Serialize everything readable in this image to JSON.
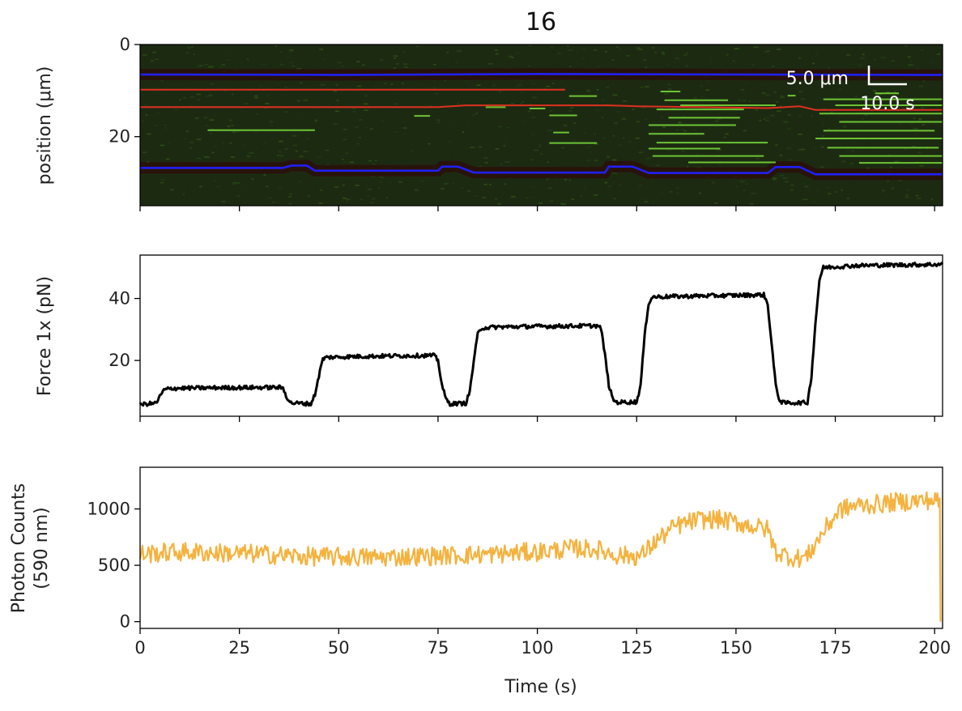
{
  "title": "16",
  "colors": {
    "kymo_bg": "#1d2a12",
    "tether": "#2020ff",
    "red_track": "#e03020",
    "green_track": "#7adf3a",
    "force_line": "#000000",
    "photon_line": "#f4b23e"
  },
  "scalebar": {
    "length_label": "5.0 μm",
    "time_label": "10.0 s"
  },
  "chart_data": [
    {
      "type": "heatmap",
      "name": "kymograph",
      "ylabel": "position (μm)",
      "xlim": [
        0,
        202
      ],
      "ylim": [
        35,
        0
      ],
      "yticks": [
        0,
        20
      ],
      "xticks": [
        0,
        25,
        50,
        75,
        100,
        125,
        150,
        175,
        200
      ],
      "tether_lines": [
        {
          "points": [
            [
              0,
              6.5
            ],
            [
              50,
              6.6
            ],
            [
              100,
              6.4
            ],
            [
              150,
              6.5
            ],
            [
              202,
              6.6
            ]
          ]
        },
        {
          "points": [
            [
              0,
              26.8
            ],
            [
              36,
              26.8
            ],
            [
              38,
              26.3
            ],
            [
              42,
              26.3
            ],
            [
              44,
              27.4
            ],
            [
              75,
              27.4
            ],
            [
              76,
              26.5
            ],
            [
              80,
              26.5
            ],
            [
              84,
              27.8
            ],
            [
              117,
              27.8
            ],
            [
              118,
              26.5
            ],
            [
              124,
              26.5
            ],
            [
              128,
              27.9
            ],
            [
              158,
              27.9
            ],
            [
              160,
              26.6
            ],
            [
              166,
              26.6
            ],
            [
              170,
              28.2
            ],
            [
              202,
              28.2
            ]
          ]
        }
      ],
      "red_lines": [
        {
          "points": [
            [
              0,
              9.8
            ],
            [
              107,
              9.8
            ]
          ]
        },
        {
          "points": [
            [
              0,
              13.6
            ],
            [
              75,
              13.6
            ],
            [
              82,
              13.2
            ],
            [
              118,
              13.2
            ],
            [
              125,
              13.4
            ],
            [
              158,
              13.8
            ],
            [
              166,
              13.4
            ],
            [
              170,
              14.2
            ],
            [
              202,
              14.2
            ]
          ]
        }
      ],
      "green_segments": [
        [
          [
            17,
            18.6
          ],
          [
            44,
            18.6
          ]
        ],
        [
          [
            69,
            15.5
          ],
          [
            73,
            15.5
          ]
        ],
        [
          [
            87,
            13.6
          ],
          [
            92,
            13.6
          ]
        ],
        [
          [
            98,
            13.9
          ],
          [
            102,
            13.9
          ]
        ],
        [
          [
            103,
            15.4
          ],
          [
            110,
            15.4
          ]
        ],
        [
          [
            108,
            11.2
          ],
          [
            115,
            11.2
          ]
        ],
        [
          [
            103,
            21.4
          ],
          [
            115,
            21.4
          ]
        ],
        [
          [
            104,
            19.1
          ],
          [
            108,
            19.1
          ]
        ],
        [
          [
            131,
            10.2
          ],
          [
            136,
            10.2
          ]
        ],
        [
          [
            132,
            12.1
          ],
          [
            148,
            12.1
          ]
        ],
        [
          [
            136,
            13.2
          ],
          [
            160,
            13.2
          ]
        ],
        [
          [
            130,
            14.1
          ],
          [
            152,
            14.1
          ]
        ],
        [
          [
            133,
            15.9
          ],
          [
            151,
            15.9
          ]
        ],
        [
          [
            128,
            17.5
          ],
          [
            150,
            17.5
          ]
        ],
        [
          [
            128,
            19.4
          ],
          [
            142,
            19.4
          ]
        ],
        [
          [
            130,
            21.3
          ],
          [
            158,
            21.3
          ]
        ],
        [
          [
            128,
            22.6
          ],
          [
            146,
            22.6
          ]
        ],
        [
          [
            129,
            24.2
          ],
          [
            157,
            24.2
          ]
        ],
        [
          [
            138,
            25.6
          ],
          [
            160,
            25.6
          ]
        ],
        [
          [
            163,
            11.1
          ],
          [
            165,
            11.1
          ]
        ],
        [
          [
            172,
            11.9
          ],
          [
            202,
            11.9
          ]
        ],
        [
          [
            175,
            13.2
          ],
          [
            202,
            13.2
          ]
        ],
        [
          [
            171,
            15.0
          ],
          [
            202,
            15.0
          ]
        ],
        [
          [
            176,
            16.8
          ],
          [
            202,
            16.8
          ]
        ],
        [
          [
            172,
            18.7
          ],
          [
            200,
            18.7
          ]
        ],
        [
          [
            170,
            20.4
          ],
          [
            202,
            20.4
          ]
        ],
        [
          [
            173,
            22.4
          ],
          [
            201,
            22.4
          ]
        ],
        [
          [
            176,
            24.2
          ],
          [
            202,
            24.2
          ]
        ],
        [
          [
            181,
            25.7
          ],
          [
            202,
            25.7
          ]
        ],
        [
          [
            185,
            10.6
          ],
          [
            191,
            10.6
          ]
        ]
      ]
    },
    {
      "type": "line",
      "name": "force",
      "ylabel": "Force 1x (pN)",
      "xlim": [
        0,
        202
      ],
      "ylim": [
        2,
        54
      ],
      "yticks": [
        20,
        40
      ],
      "xticks": [
        0,
        25,
        50,
        75,
        100,
        125,
        150,
        175,
        200
      ],
      "series": [
        {
          "points": [
            [
              0,
              5.8
            ],
            [
              4,
              6.2
            ],
            [
              6,
              10.5
            ],
            [
              8,
              11.0
            ],
            [
              20,
              11.2
            ],
            [
              35,
              11.3
            ],
            [
              36,
              11.0
            ],
            [
              37,
              8.0
            ],
            [
              38,
              6.3
            ],
            [
              43,
              6.0
            ],
            [
              44,
              9.0
            ],
            [
              45,
              15.0
            ],
            [
              46,
              20.5
            ],
            [
              47,
              21.0
            ],
            [
              55,
              21.3
            ],
            [
              65,
              21.5
            ],
            [
              74,
              21.6
            ],
            [
              75,
              20.0
            ],
            [
              76,
              12.0
            ],
            [
              77,
              7.5
            ],
            [
              78,
              6.0
            ],
            [
              82,
              6.2
            ],
            [
              83,
              10.0
            ],
            [
              84,
              20.0
            ],
            [
              85,
              28.5
            ],
            [
              86,
              30.5
            ],
            [
              90,
              30.8
            ],
            [
              100,
              31.0
            ],
            [
              115,
              31.2
            ],
            [
              116,
              30.5
            ],
            [
              117,
              22.0
            ],
            [
              118,
              12.0
            ],
            [
              119,
              7.5
            ],
            [
              120,
              6.5
            ],
            [
              125,
              6.6
            ],
            [
              126,
              12.0
            ],
            [
              127,
              28.0
            ],
            [
              128,
              38.5
            ],
            [
              129,
              40.5
            ],
            [
              140,
              40.8
            ],
            [
              150,
              41.0
            ],
            [
              157,
              41.2
            ],
            [
              158,
              38.0
            ],
            [
              159,
              25.0
            ],
            [
              160,
              12.0
            ],
            [
              161,
              7.0
            ],
            [
              162,
              6.3
            ],
            [
              168,
              6.4
            ],
            [
              169,
              15.0
            ],
            [
              170,
              32.0
            ],
            [
              171,
              46.0
            ],
            [
              172,
              50.0
            ],
            [
              180,
              50.6
            ],
            [
              190,
              50.8
            ],
            [
              202,
              51.0
            ]
          ]
        }
      ]
    },
    {
      "type": "line",
      "name": "photon_counts",
      "ylabel": "Photon Counts (590 nm)",
      "ylabel_lines": [
        "Photon Counts",
        "(590 nm)"
      ],
      "xlabel": "Time (s)",
      "xlim": [
        0,
        202
      ],
      "ylim": [
        -60,
        1370
      ],
      "yticks": [
        0,
        500,
        1000
      ],
      "xticks": [
        0,
        25,
        50,
        75,
        100,
        125,
        150,
        175,
        200
      ],
      "series": [
        {
          "points": [
            [
              0,
              600
            ],
            [
              10,
              620
            ],
            [
              20,
              610
            ],
            [
              30,
              600
            ],
            [
              40,
              580
            ],
            [
              50,
              575
            ],
            [
              60,
              570
            ],
            [
              70,
              580
            ],
            [
              80,
              590
            ],
            [
              90,
              600
            ],
            [
              100,
              620
            ],
            [
              110,
              650
            ],
            [
              115,
              640
            ],
            [
              120,
              590
            ],
            [
              126,
              580
            ],
            [
              130,
              720
            ],
            [
              135,
              850
            ],
            [
              140,
              900
            ],
            [
              145,
              910
            ],
            [
              150,
              880
            ],
            [
              155,
              840
            ],
            [
              158,
              820
            ],
            [
              160,
              620
            ],
            [
              165,
              560
            ],
            [
              168,
              580
            ],
            [
              172,
              800
            ],
            [
              176,
              990
            ],
            [
              180,
              1030
            ],
            [
              185,
              1040
            ],
            [
              190,
              1060
            ],
            [
              195,
              1070
            ],
            [
              200,
              1080
            ],
            [
              201.5,
              1050
            ]
          ]
        }
      ]
    }
  ]
}
